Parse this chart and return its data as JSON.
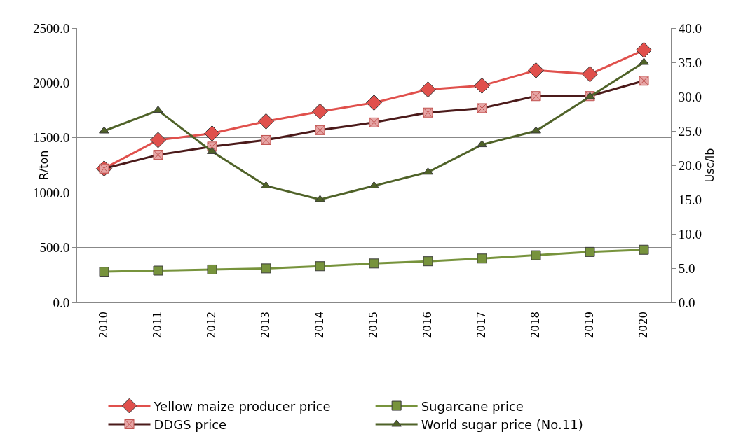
{
  "chart_data": {
    "type": "line",
    "ylabel": "R/ton",
    "y2label": "Usc/lb",
    "categories": [
      "2010",
      "2011",
      "2012",
      "2013",
      "2014",
      "2015",
      "2016",
      "2017",
      "2018",
      "2019",
      "2020"
    ],
    "series": [
      {
        "name": "Yellow maize producer price",
        "color": "#e0504c",
        "marker": "diamond",
        "values": [
          1220,
          1480,
          1540,
          1650,
          1740,
          1820,
          1940,
          1975,
          2115,
          2080,
          2300
        ]
      },
      {
        "name": "Sugarcane price",
        "color": "#77933c",
        "marker": "square",
        "values": [
          280,
          290,
          300,
          310,
          330,
          355,
          375,
          400,
          430,
          460,
          480
        ]
      },
      {
        "name": "DDGS price",
        "color": "#4b1a1a",
        "marker": "cross",
        "values": [
          1220,
          1345,
          1420,
          1480,
          1570,
          1640,
          1730,
          1770,
          1880,
          1880,
          2020
        ]
      },
      {
        "name": "World sugar price (No.11)",
        "color": "#4f6228",
        "marker": "triangle",
        "axis": "y2",
        "values": [
          25,
          28,
          22,
          17,
          15,
          17,
          19,
          23,
          25,
          30,
          35
        ]
      }
    ],
    "ylim": [
      0,
      2500
    ],
    "yticks": [
      {
        "value": 0,
        "label": "0.0"
      },
      {
        "value": 500,
        "label": "500.0"
      },
      {
        "value": 1000,
        "label": "1000.0"
      },
      {
        "value": 1500,
        "label": "1500.0"
      },
      {
        "value": 2000,
        "label": "2000.0"
      },
      {
        "value": 2500,
        "label": "2500.0"
      }
    ],
    "y2lim": [
      0,
      40
    ],
    "y2ticks": [
      {
        "value": 0,
        "label": "0.0"
      },
      {
        "value": 5,
        "label": "5.0"
      },
      {
        "value": 10,
        "label": "10.0"
      },
      {
        "value": 15,
        "label": "15.0"
      },
      {
        "value": 20,
        "label": "20.0"
      },
      {
        "value": 25,
        "label": "25.0"
      },
      {
        "value": 30,
        "label": "30.0"
      },
      {
        "value": 35,
        "label": "35.0"
      },
      {
        "value": 40,
        "label": "40.0"
      }
    ],
    "grid": "y",
    "legend": "bottom"
  }
}
